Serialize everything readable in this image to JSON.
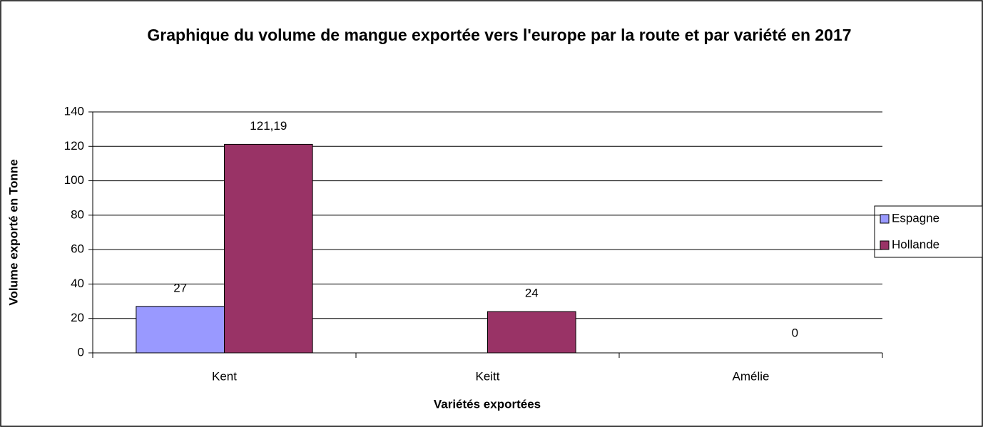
{
  "chart_data": {
    "type": "bar",
    "title": "Graphique du volume de mangue exportée vers l'europe par la route et par variété en 2017",
    "xlabel": "Variétés exportées",
    "ylabel": "Volume exporté en Tonne",
    "categories": [
      "Kent",
      "Keitt",
      "Amélie"
    ],
    "series": [
      {
        "name": "Espagne",
        "color": "#9999ff",
        "values": [
          27,
          null,
          null
        ]
      },
      {
        "name": "Hollande",
        "color": "#993366",
        "values": [
          121.19,
          24,
          0
        ],
        "value_labels": [
          "121,19",
          "24",
          "0"
        ]
      }
    ],
    "ylim": [
      0,
      140
    ],
    "yticks": [
      0,
      20,
      40,
      60,
      80,
      100,
      120,
      140
    ],
    "grid": true,
    "legend": "right"
  }
}
